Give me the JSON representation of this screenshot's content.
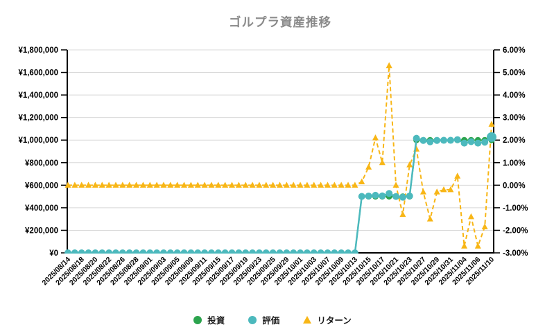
{
  "title": "ゴルプラ資産推移",
  "legend": {
    "items": [
      {
        "label": "投資",
        "marker": "circle",
        "color": "#2ca44e"
      },
      {
        "label": "評価",
        "marker": "circle",
        "color": "#4cb9bd"
      },
      {
        "label": "リターン",
        "marker": "triangle",
        "color": "#f8b616"
      }
    ]
  },
  "colors": {
    "title": "#8a8a8a",
    "grid": "#d8d8d8",
    "axis": "#000000",
    "investment": "#2ca44e",
    "evaluation": "#4cb9bd",
    "return": "#f8b616",
    "background": "#ffffff"
  },
  "chart_data": {
    "type": "line",
    "title": "ゴルプラ資産推移",
    "xlabel": "",
    "ylabel_left": "",
    "ylabel_right": "",
    "grid": "horizontal",
    "legend_position": "bottom",
    "x_label_every": 2,
    "x": [
      "2025/08/14",
      "2025/08/15",
      "2025/08/18",
      "2025/08/19",
      "2025/08/20",
      "2025/08/21",
      "2025/08/22",
      "2025/08/25",
      "2025/08/26",
      "2025/08/27",
      "2025/08/28",
      "2025/08/29",
      "2025/09/01",
      "2025/09/02",
      "2025/09/03",
      "2025/09/04",
      "2025/09/05",
      "2025/09/08",
      "2025/09/09",
      "2025/09/10",
      "2025/09/11",
      "2025/09/12",
      "2025/09/15",
      "2025/09/16",
      "2025/09/17",
      "2025/09/18",
      "2025/09/19",
      "2025/09/22",
      "2025/09/23",
      "2025/09/24",
      "2025/09/25",
      "2025/09/26",
      "2025/09/29",
      "2025/09/30",
      "2025/10/01",
      "2025/10/02",
      "2025/10/03",
      "2025/10/06",
      "2025/10/07",
      "2025/10/08",
      "2025/10/09",
      "2025/10/10",
      "2025/10/13",
      "2025/10/14",
      "2025/10/15",
      "2025/10/16",
      "2025/10/17",
      "2025/10/20",
      "2025/10/21",
      "2025/10/22",
      "2025/10/23",
      "2025/10/24",
      "2025/10/27",
      "2025/10/28",
      "2025/10/29",
      "2025/10/30",
      "2025/10/31",
      "2025/11/03",
      "2025/11/04",
      "2025/11/05",
      "2025/11/06",
      "2025/11/07",
      "2025/11/10"
    ],
    "left_axis": {
      "min": 0,
      "max": 1800000,
      "step": 200000,
      "tick_labels": [
        "¥0",
        "¥200,000",
        "¥400,000",
        "¥600,000",
        "¥800,000",
        "¥1,000,000",
        "¥1,200,000",
        "¥1,400,000",
        "¥1,600,000",
        "¥1,800,000"
      ]
    },
    "right_axis": {
      "min": -3,
      "max": 6,
      "step": 1,
      "tick_labels": [
        "-3.00%",
        "-2.00%",
        "-1.00%",
        "0.00%",
        "1.00%",
        "2.00%",
        "3.00%",
        "4.00%",
        "5.00%",
        "6.00%"
      ]
    },
    "series": [
      {
        "name": "投資",
        "axis": "left",
        "color": "#2ca44e",
        "marker": "circle",
        "line_style": "solid",
        "values": [
          0,
          0,
          0,
          0,
          0,
          0,
          0,
          0,
          0,
          0,
          0,
          0,
          0,
          0,
          0,
          0,
          0,
          0,
          0,
          0,
          0,
          0,
          0,
          0,
          0,
          0,
          0,
          0,
          0,
          0,
          0,
          0,
          0,
          0,
          0,
          0,
          0,
          0,
          0,
          0,
          0,
          0,
          0,
          500000,
          500000,
          500000,
          500000,
          500000,
          500000,
          500000,
          500000,
          1000000,
          1000000,
          1000000,
          1000000,
          1000000,
          1000000,
          1000000,
          1000000,
          1000000,
          1000000,
          1000000,
          1000000
        ]
      },
      {
        "name": "評価",
        "axis": "left",
        "color": "#4cb9bd",
        "marker": "circle",
        "line_style": "solid",
        "values": [
          0,
          0,
          0,
          0,
          0,
          0,
          0,
          0,
          0,
          0,
          0,
          0,
          0,
          0,
          0,
          0,
          0,
          0,
          0,
          0,
          0,
          0,
          0,
          0,
          0,
          0,
          0,
          0,
          0,
          0,
          0,
          0,
          0,
          0,
          0,
          0,
          0,
          0,
          0,
          0,
          0,
          0,
          0,
          500750,
          504000,
          510500,
          505000,
          526500,
          500000,
          493500,
          504500,
          1016000,
          997000,
          985000,
          997000,
          998000,
          998000,
          1004000,
          973000,
          986000,
          973000,
          981500,
          1027000
        ]
      },
      {
        "name": "リターン",
        "axis": "right",
        "color": "#f8b616",
        "marker": "triangle",
        "line_style": "dashed",
        "values": [
          0,
          0,
          0,
          0,
          0,
          0,
          0,
          0,
          0,
          0,
          0,
          0,
          0,
          0,
          0,
          0,
          0,
          0,
          0,
          0,
          0,
          0,
          0,
          0,
          0,
          0,
          0,
          0,
          0,
          0,
          0,
          0,
          0,
          0,
          0,
          0,
          0,
          0,
          0,
          0,
          0,
          0,
          0,
          0.15,
          0.8,
          2.1,
          1.0,
          5.3,
          0.0,
          -1.3,
          0.9,
          1.6,
          -0.3,
          -1.5,
          -0.3,
          -0.2,
          -0.2,
          0.4,
          -2.7,
          -1.4,
          -2.7,
          -1.85,
          2.7
        ]
      }
    ]
  }
}
